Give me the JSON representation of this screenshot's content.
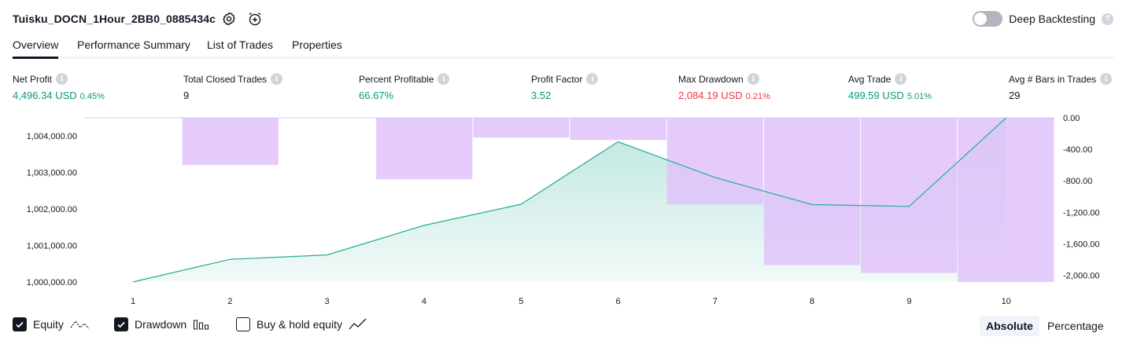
{
  "header": {
    "title": "Tuisku_DOCN_1Hour_2BB0_0885434c",
    "deep_backtesting_label": "Deep Backtesting",
    "deep_backtesting_enabled": false
  },
  "tabs": [
    {
      "label": "Overview",
      "active": true
    },
    {
      "label": "Performance Summary",
      "active": false
    },
    {
      "label": "List of Trades",
      "active": false
    },
    {
      "label": "Properties",
      "active": false
    }
  ],
  "stats": {
    "net_profit": {
      "label": "Net Profit",
      "value": "4,496.34 USD",
      "pct": "0.45%"
    },
    "total_closed_trades": {
      "label": "Total Closed Trades",
      "value": "9"
    },
    "percent_profitable": {
      "label": "Percent Profitable",
      "value": "66.67%"
    },
    "profit_factor": {
      "label": "Profit Factor",
      "value": "3.52"
    },
    "max_drawdown": {
      "label": "Max Drawdown",
      "value": "2,084.19 USD",
      "pct": "0.21%"
    },
    "avg_trade": {
      "label": "Avg Trade",
      "value": "499.59 USD",
      "pct": "5.01%"
    },
    "avg_bars": {
      "label": "Avg # Bars in Trades",
      "value": "29"
    }
  },
  "colors": {
    "equity_line": "#22ab94",
    "equity_fill": "#22ab94",
    "drawdown_bar": "#e1c2fc",
    "drawdown_overlap": "#b6b7e6",
    "positive": "#089981",
    "negative": "#f23645"
  },
  "chart_data": {
    "type": "line",
    "x": [
      1,
      2,
      3,
      4,
      5,
      6,
      7,
      8,
      9,
      10
    ],
    "x_tick_labels": [
      "1",
      "2",
      "3",
      "4",
      "5",
      "6",
      "7",
      "8",
      "9",
      "10"
    ],
    "series": [
      {
        "name": "Equity",
        "axis": "left",
        "values": [
          1000000,
          1000620,
          1000740,
          1001550,
          1002130,
          1003840,
          1002860,
          1002120,
          1002070,
          1004496.34
        ]
      },
      {
        "name": "Drawdown",
        "axis": "right",
        "type": "bar",
        "values": [
          0,
          -600,
          0,
          -780,
          -250,
          -280,
          -1100,
          -1870,
          -1970,
          -2084.19
        ]
      }
    ],
    "y_left_ticks": [
      "1,000,000.00",
      "1,001,000.00",
      "1,002,000.00",
      "1,003,000.00",
      "1,004,000.00"
    ],
    "y_left_tick_values": [
      1000000,
      1001000,
      1002000,
      1003000,
      1004000
    ],
    "y_left_range": [
      1000000,
      1004496.34
    ],
    "y_right_ticks": [
      "0.00",
      "-400.00",
      "-800.00",
      "-1,200.00",
      "-1,600.00",
      "-2,000.00"
    ],
    "y_right_tick_values": [
      0,
      -400,
      -800,
      -1200,
      -1600,
      -2000
    ],
    "y_right_range": [
      -2084.19,
      0
    ],
    "grid": false
  },
  "legend": {
    "equity": {
      "label": "Equity",
      "checked": true
    },
    "drawdown": {
      "label": "Drawdown",
      "checked": true
    },
    "buy_hold": {
      "label": "Buy & hold equity",
      "checked": false
    }
  },
  "view_modes": {
    "absolute": {
      "label": "Absolute",
      "active": true
    },
    "percentage": {
      "label": "Percentage",
      "active": false
    }
  }
}
